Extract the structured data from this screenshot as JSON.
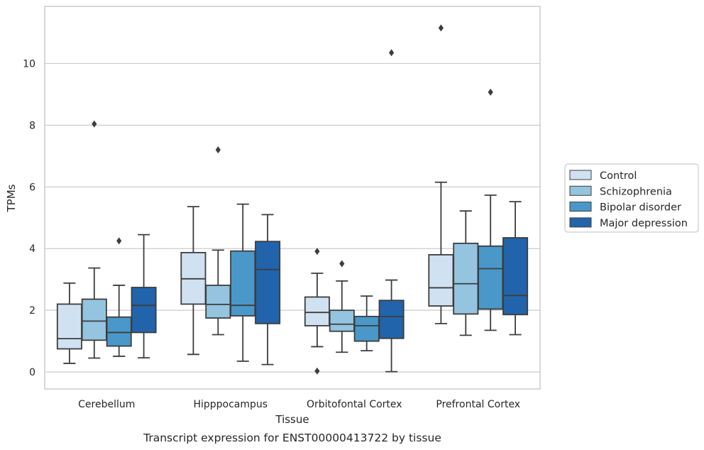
{
  "chart_data": {
    "type": "boxplot",
    "caption": "Transcript expression for ENST00000413722 by tissue",
    "xlabel": "Tissue",
    "ylabel": "TPMs",
    "ylim": [
      -0.55,
      11.85
    ],
    "yticks": [
      0,
      2,
      4,
      6,
      8,
      10
    ],
    "grid": "horizontal",
    "legend_position": "right",
    "categories": [
      "Cerebellum",
      "Hipppocampus",
      "Orbitofontal Cortex",
      "Prefrontal Cortex"
    ],
    "series": [
      {
        "name": "Control",
        "color": "#d0e1f2",
        "boxes": [
          {
            "whislo": 0.28,
            "q1": 0.75,
            "med": 1.08,
            "q3": 2.2,
            "whishi": 2.88,
            "fliers": []
          },
          {
            "whislo": 0.57,
            "q1": 2.2,
            "med": 3.02,
            "q3": 3.87,
            "whishi": 5.36,
            "fliers": []
          },
          {
            "whislo": 0.82,
            "q1": 1.5,
            "med": 1.93,
            "q3": 2.43,
            "whishi": 3.2,
            "fliers": [
              3.91,
              0.03
            ]
          },
          {
            "whislo": 1.57,
            "q1": 2.14,
            "med": 2.73,
            "q3": 3.8,
            "whishi": 6.15,
            "fliers": [
              11.15
            ]
          }
        ]
      },
      {
        "name": "Schizophrenia",
        "color": "#94c4df",
        "boxes": [
          {
            "whislo": 0.45,
            "q1": 1.03,
            "med": 1.65,
            "q3": 2.36,
            "whishi": 3.37,
            "fliers": [
              8.04
            ]
          },
          {
            "whislo": 1.21,
            "q1": 1.75,
            "med": 2.19,
            "q3": 2.81,
            "whishi": 3.95,
            "fliers": [
              7.2
            ]
          },
          {
            "whislo": 0.64,
            "q1": 1.32,
            "med": 1.55,
            "q3": 2.0,
            "whishi": 2.95,
            "fliers": [
              3.51
            ]
          },
          {
            "whislo": 1.19,
            "q1": 1.88,
            "med": 2.86,
            "q3": 4.17,
            "whishi": 5.22,
            "fliers": []
          }
        ]
      },
      {
        "name": "Bipolar disorder",
        "color": "#4a98c9",
        "boxes": [
          {
            "whislo": 0.51,
            "q1": 0.84,
            "med": 1.28,
            "q3": 1.78,
            "whishi": 2.81,
            "fliers": [
              4.25
            ]
          },
          {
            "whislo": 0.35,
            "q1": 1.82,
            "med": 2.16,
            "q3": 3.92,
            "whishi": 5.44,
            "fliers": []
          },
          {
            "whislo": 0.69,
            "q1": 1.0,
            "med": 1.5,
            "q3": 1.8,
            "whishi": 2.46,
            "fliers": []
          },
          {
            "whislo": 1.35,
            "q1": 2.04,
            "med": 3.35,
            "q3": 4.08,
            "whishi": 5.73,
            "fliers": [
              9.07
            ]
          }
        ]
      },
      {
        "name": "Major depression",
        "color": "#2164ab",
        "boxes": [
          {
            "whislo": 0.46,
            "q1": 1.28,
            "med": 2.16,
            "q3": 2.74,
            "whishi": 4.45,
            "fliers": []
          },
          {
            "whislo": 0.24,
            "q1": 1.57,
            "med": 3.32,
            "q3": 4.23,
            "whishi": 5.1,
            "fliers": []
          },
          {
            "whislo": 0.01,
            "q1": 1.09,
            "med": 1.8,
            "q3": 2.32,
            "whishi": 2.98,
            "fliers": [
              10.35
            ]
          },
          {
            "whislo": 1.21,
            "q1": 1.86,
            "med": 2.48,
            "q3": 4.35,
            "whishi": 5.52,
            "fliers": []
          }
        ]
      }
    ]
  }
}
